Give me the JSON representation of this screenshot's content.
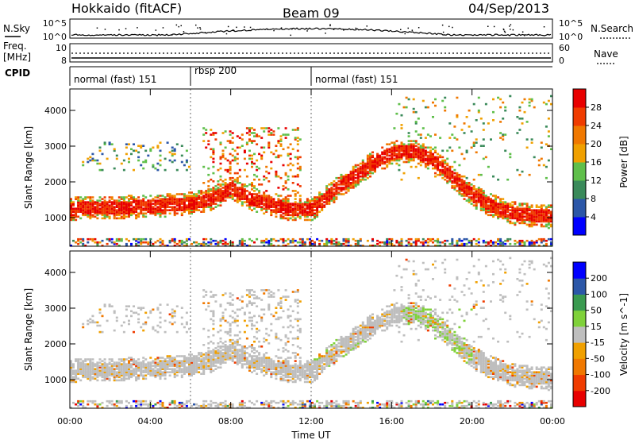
{
  "header": {
    "station": "Hokkaido (fitACF)",
    "beam": "Beam 09",
    "date": "04/Sep/2013"
  },
  "noise_panel": {
    "left_label": "N.Sky",
    "right_label": "N.Search",
    "ticks_left": [
      "10^5",
      "10^0"
    ],
    "ticks_right": [
      "10^5",
      "10^0"
    ]
  },
  "freq_panel": {
    "left_label_1": "Freq.",
    "left_label_2": "[MHz]",
    "right_label": "Nave",
    "ticks_left": [
      "10",
      "8"
    ],
    "ticks_right": [
      "60",
      "0"
    ]
  },
  "cpid": {
    "label": "CPID",
    "modes": [
      {
        "start": 0,
        "end": 6,
        "label": "normal (fast) 151"
      },
      {
        "start": 6,
        "end": 12,
        "label": "rbsp 200"
      },
      {
        "start": 12,
        "end": 24,
        "label": "normal (fast) 151"
      }
    ]
  },
  "colors": {
    "power": [
      "#0000ff",
      "#2c57a8",
      "#3a8a5a",
      "#5fbf4a",
      "#f0a000",
      "#f07800",
      "#f03c00",
      "#e80000"
    ],
    "velocity": [
      "#e80000",
      "#f03c00",
      "#f07800",
      "#f0a000",
      "#bebebe",
      "#7fd13a",
      "#3a9a50",
      "#2c57a8",
      "#0000ff"
    ]
  },
  "chart_data": [
    {
      "type": "heatmap",
      "panel": "power",
      "ylabel": "Slant Range [km]",
      "yticks": [
        "1000",
        "2000",
        "3000",
        "4000"
      ],
      "ylim": [
        200,
        4600
      ],
      "xlim": [
        0,
        24
      ],
      "colorbar_label": "Power [dB]",
      "colorbar_ticks": [
        "4",
        "8",
        "12",
        "16",
        "20",
        "24",
        "28"
      ],
      "colorbar_range": [
        0,
        32
      ],
      "main_echo_band": {
        "hours": [
          0,
          2,
          4,
          6,
          7,
          8,
          9,
          10,
          11,
          12,
          13,
          14,
          15,
          16,
          17,
          18,
          19,
          20,
          21,
          22,
          23,
          24
        ],
        "center": [
          1230,
          1260,
          1300,
          1380,
          1500,
          1800,
          1500,
          1350,
          1200,
          1200,
          1700,
          2100,
          2500,
          2800,
          2850,
          2600,
          2100,
          1600,
          1300,
          1100,
          1050,
          1000
        ]
      }
    },
    {
      "type": "heatmap",
      "panel": "velocity",
      "ylabel": "Slant Range [km]",
      "yticks": [
        "1000",
        "2000",
        "3000",
        "4000"
      ],
      "ylim": [
        200,
        4600
      ],
      "xlim": [
        0,
        24
      ],
      "colorbar_label": "Velocity [m s^-1]",
      "colorbar_ticks": [
        "200",
        "100",
        "50",
        "15",
        "-15",
        "-50",
        "-100",
        "-200"
      ],
      "xlabel": "Time UT",
      "xticks": [
        "00:00",
        "04:00",
        "08:00",
        "12:00",
        "16:00",
        "20:00",
        "00:00"
      ]
    }
  ]
}
